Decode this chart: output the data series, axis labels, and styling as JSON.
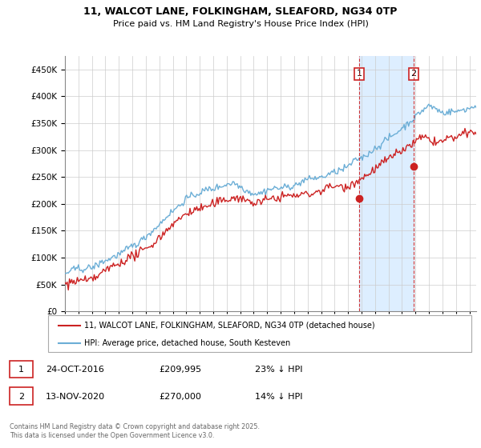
{
  "title_line1": "11, WALCOT LANE, FOLKINGHAM, SLEAFORD, NG34 0TP",
  "title_line2": "Price paid vs. HM Land Registry's House Price Index (HPI)",
  "legend_label1": "11, WALCOT LANE, FOLKINGHAM, SLEAFORD, NG34 0TP (detached house)",
  "legend_label2": "HPI: Average price, detached house, South Kesteven",
  "annotation1": {
    "num": "1",
    "date": "24-OCT-2016",
    "price": "£209,995",
    "pct": "23% ↓ HPI"
  },
  "annotation2": {
    "num": "2",
    "date": "13-NOV-2020",
    "price": "£270,000",
    "pct": "14% ↓ HPI"
  },
  "footer": "Contains HM Land Registry data © Crown copyright and database right 2025.\nThis data is licensed under the Open Government Licence v3.0.",
  "hpi_color": "#6baed6",
  "price_color": "#cc2222",
  "vline_color": "#cc2222",
  "shade_color": "#ddeeff",
  "ylim": [
    0,
    475000
  ],
  "yticks": [
    0,
    50000,
    100000,
    150000,
    200000,
    250000,
    300000,
    350000,
    400000,
    450000
  ],
  "xlim_start": 1995.0,
  "xlim_end": 2025.5,
  "marker1_x": 2016.82,
  "marker1_y": 209995,
  "marker2_x": 2020.87,
  "marker2_y": 270000
}
